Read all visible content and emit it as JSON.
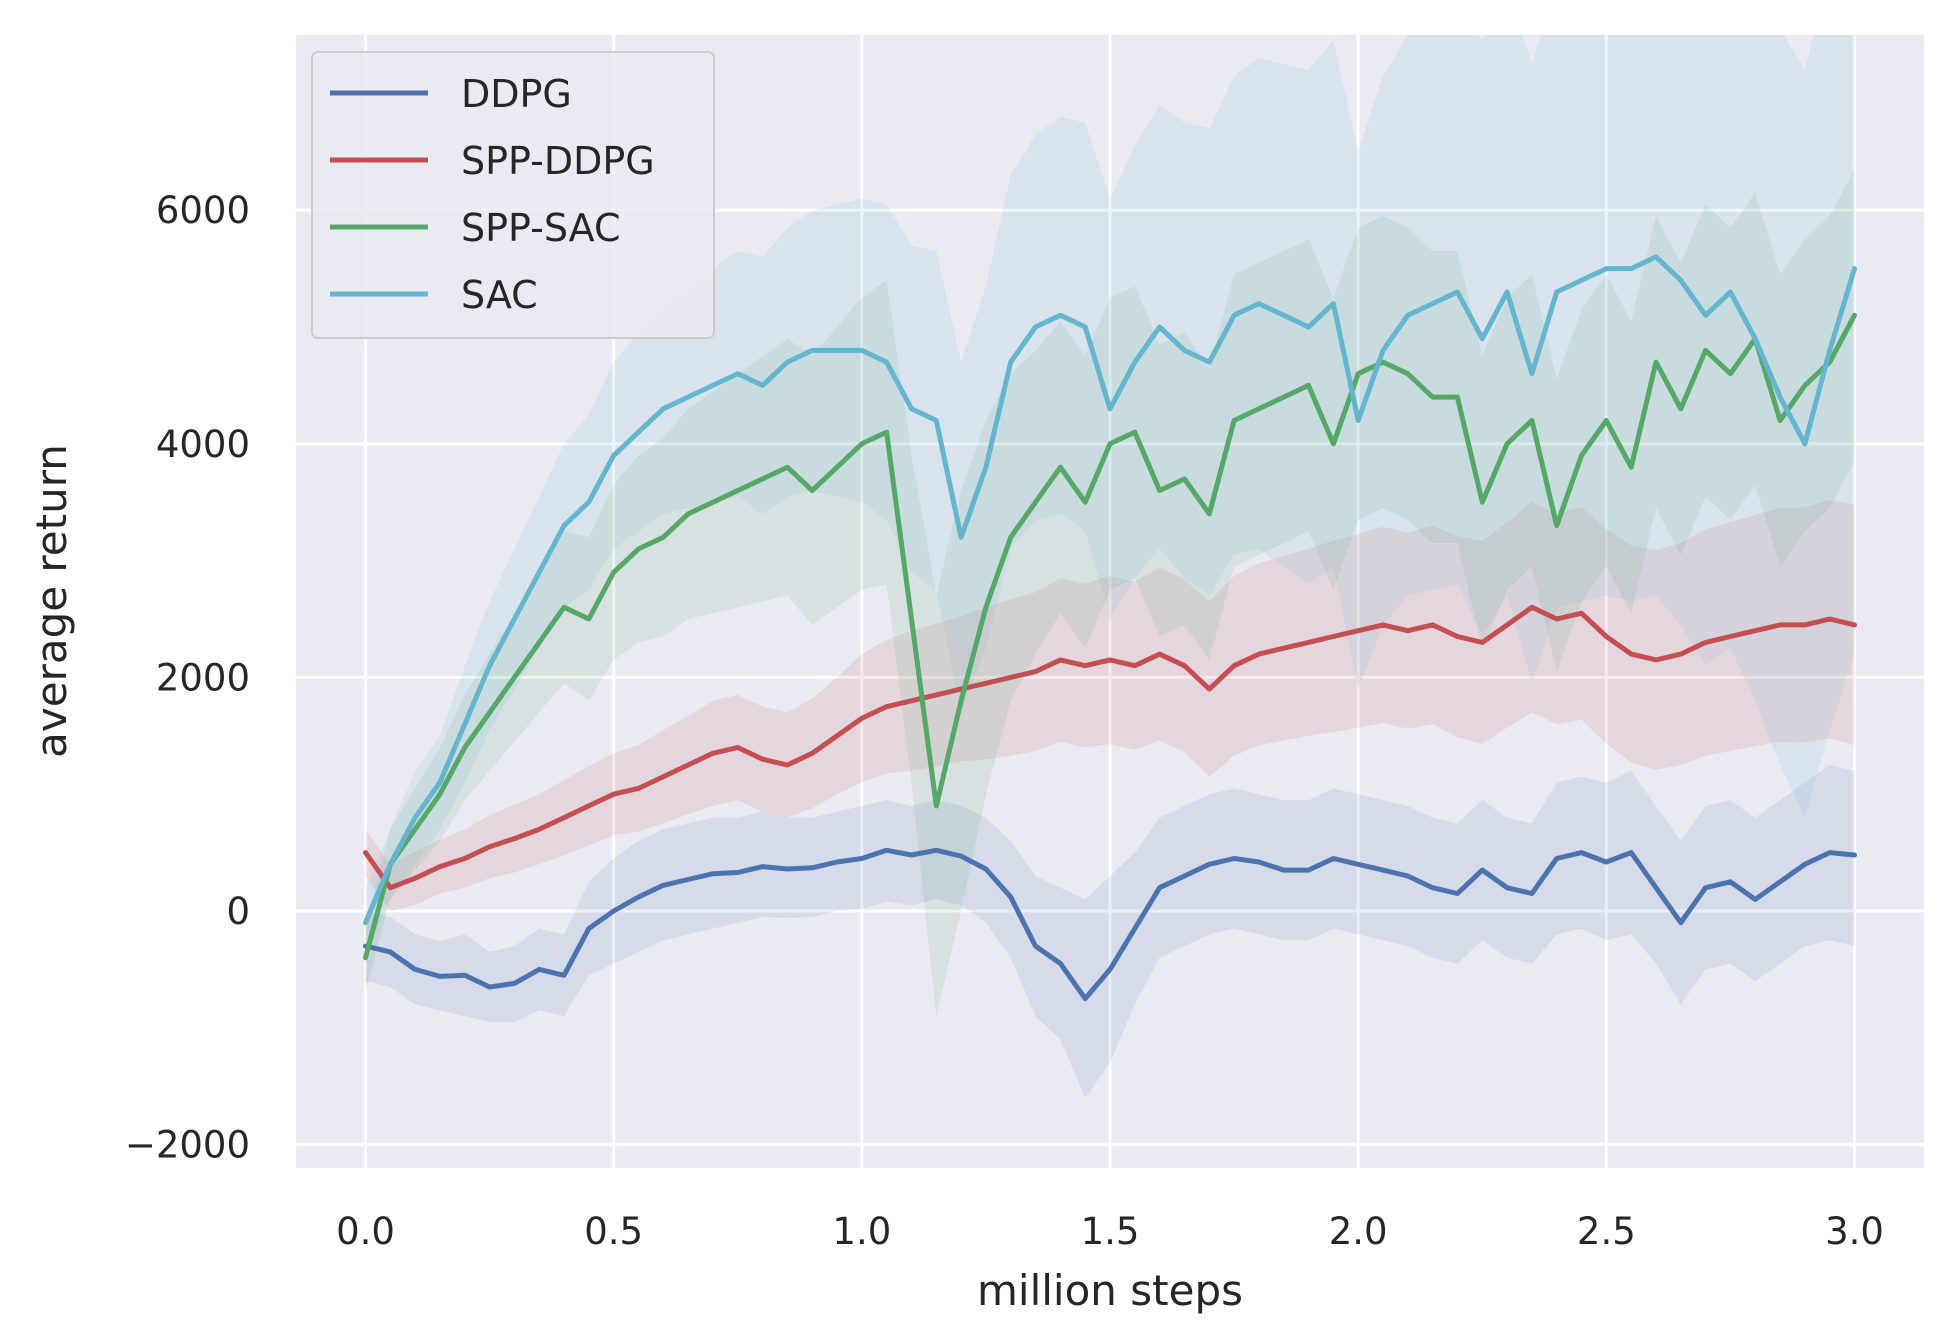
{
  "chart_data": {
    "type": "line",
    "title": "",
    "xlabel": "million steps",
    "ylabel": "average return",
    "xlim": [
      -0.14,
      3.14
    ],
    "ylim": [
      -2200,
      7500
    ],
    "xticks": [
      0.0,
      0.5,
      1.0,
      1.5,
      2.0,
      2.5,
      3.0
    ],
    "xtick_labels": [
      "0.0",
      "0.5",
      "1.0",
      "1.5",
      "2.0",
      "2.5",
      "3.0"
    ],
    "yticks": [
      -2000,
      0,
      2000,
      4000,
      6000
    ],
    "ytick_labels": [
      "−2000",
      "0",
      "2000",
      "4000",
      "6000"
    ],
    "grid": true,
    "legend_position": "top-left",
    "background": "#eaeaf2",
    "series": [
      {
        "name": "DDPG",
        "color": "#4c72b0",
        "x": [
          0.0,
          0.05,
          0.1,
          0.15,
          0.2,
          0.25,
          0.3,
          0.35,
          0.4,
          0.45,
          0.5,
          0.55,
          0.6,
          0.65,
          0.7,
          0.75,
          0.8,
          0.85,
          0.9,
          0.95,
          1.0,
          1.05,
          1.1,
          1.15,
          1.2,
          1.25,
          1.3,
          1.35,
          1.4,
          1.45,
          1.5,
          1.55,
          1.6,
          1.65,
          1.7,
          1.75,
          1.8,
          1.85,
          1.9,
          1.95,
          2.0,
          2.05,
          2.1,
          2.15,
          2.2,
          2.25,
          2.3,
          2.35,
          2.4,
          2.45,
          2.5,
          2.55,
          2.6,
          2.65,
          2.7,
          2.75,
          2.8,
          2.85,
          2.9,
          2.95,
          3.0
        ],
        "values": [
          -300,
          -350,
          -500,
          -560,
          -550,
          -650,
          -620,
          -500,
          -550,
          -150,
          0,
          120,
          220,
          270,
          320,
          330,
          380,
          360,
          370,
          420,
          450,
          520,
          480,
          520,
          470,
          360,
          120,
          -300,
          -450,
          -750,
          -500,
          -150,
          200,
          300,
          400,
          450,
          420,
          350,
          350,
          450,
          400,
          350,
          300,
          200,
          150,
          350,
          200,
          150,
          450,
          500,
          420,
          500,
          200,
          -100,
          200,
          250,
          100,
          250,
          400,
          500,
          480
        ],
        "band_lower": [
          -600,
          -650,
          -800,
          -850,
          -900,
          -950,
          -950,
          -850,
          -900,
          -550,
          -450,
          -350,
          -250,
          -200,
          -150,
          -100,
          -50,
          -60,
          -50,
          0,
          20,
          80,
          50,
          100,
          50,
          -100,
          -400,
          -900,
          -1100,
          -1600,
          -1300,
          -800,
          -400,
          -300,
          -200,
          -150,
          -200,
          -250,
          -250,
          -150,
          -200,
          -250,
          -300,
          -400,
          -450,
          -250,
          -400,
          -450,
          -200,
          -150,
          -250,
          -200,
          -450,
          -800,
          -500,
          -450,
          -600,
          -450,
          -300,
          -250,
          -300
        ],
        "band_upper": [
          0,
          -50,
          -200,
          -260,
          -200,
          -350,
          -300,
          -150,
          -200,
          250,
          450,
          600,
          700,
          750,
          800,
          800,
          850,
          800,
          800,
          850,
          900,
          950,
          900,
          950,
          900,
          800,
          600,
          300,
          200,
          100,
          300,
          500,
          800,
          900,
          1000,
          1050,
          1000,
          950,
          950,
          1050,
          1000,
          950,
          900,
          800,
          750,
          950,
          800,
          750,
          1100,
          1150,
          1100,
          1200,
          900,
          600,
          900,
          950,
          800,
          950,
          1100,
          1250,
          1200
        ]
      },
      {
        "name": "SPP-DDPG",
        "color": "#c44e52",
        "x": [
          0.0,
          0.05,
          0.1,
          0.15,
          0.2,
          0.25,
          0.3,
          0.35,
          0.4,
          0.45,
          0.5,
          0.55,
          0.6,
          0.65,
          0.7,
          0.75,
          0.8,
          0.85,
          0.9,
          0.95,
          1.0,
          1.05,
          1.1,
          1.15,
          1.2,
          1.25,
          1.3,
          1.35,
          1.4,
          1.45,
          1.5,
          1.55,
          1.6,
          1.65,
          1.7,
          1.75,
          1.8,
          1.85,
          1.9,
          1.95,
          2.0,
          2.05,
          2.1,
          2.15,
          2.2,
          2.25,
          2.3,
          2.35,
          2.4,
          2.45,
          2.5,
          2.55,
          2.6,
          2.65,
          2.7,
          2.75,
          2.8,
          2.85,
          2.9,
          2.95,
          3.0
        ],
        "values": [
          500,
          200,
          280,
          380,
          450,
          550,
          620,
          700,
          800,
          900,
          1000,
          1050,
          1150,
          1250,
          1350,
          1400,
          1300,
          1250,
          1350,
          1500,
          1650,
          1750,
          1800,
          1850,
          1900,
          1950,
          2000,
          2050,
          2150,
          2100,
          2150,
          2100,
          2200,
          2100,
          1900,
          2100,
          2200,
          2250,
          2300,
          2350,
          2400,
          2450,
          2400,
          2450,
          2350,
          2300,
          2450,
          2600,
          2500,
          2550,
          2350,
          2200,
          2150,
          2200,
          2300,
          2350,
          2400,
          2450,
          2450,
          2500,
          2450
        ],
        "band_lower": [
          300,
          0,
          50,
          150,
          200,
          280,
          330,
          400,
          480,
          560,
          650,
          680,
          750,
          830,
          900,
          950,
          850,
          800,
          880,
          1000,
          1100,
          1180,
          1200,
          1240,
          1280,
          1300,
          1330,
          1370,
          1450,
          1400,
          1430,
          1380,
          1460,
          1360,
          1150,
          1330,
          1420,
          1460,
          1500,
          1530,
          1570,
          1610,
          1560,
          1600,
          1490,
          1430,
          1570,
          1700,
          1600,
          1640,
          1430,
          1270,
          1210,
          1250,
          1330,
          1370,
          1410,
          1450,
          1440,
          1480,
          1420
        ],
        "band_upper": [
          700,
          400,
          510,
          610,
          700,
          820,
          910,
          1000,
          1120,
          1240,
          1350,
          1420,
          1550,
          1670,
          1800,
          1850,
          1750,
          1700,
          1820,
          2000,
          2200,
          2320,
          2400,
          2460,
          2520,
          2600,
          2670,
          2730,
          2850,
          2800,
          2870,
          2820,
          2940,
          2840,
          2650,
          2870,
          2980,
          3040,
          3100,
          3170,
          3230,
          3290,
          3240,
          3300,
          3210,
          3170,
          3330,
          3500,
          3400,
          3460,
          3270,
          3130,
          3090,
          3150,
          3270,
          3330,
          3390,
          3450,
          3460,
          3520,
          3480
        ]
      },
      {
        "name": "SPP-SAC",
        "color": "#55a868",
        "x": [
          0.0,
          0.05,
          0.1,
          0.15,
          0.2,
          0.25,
          0.3,
          0.35,
          0.4,
          0.45,
          0.5,
          0.55,
          0.6,
          0.65,
          0.7,
          0.75,
          0.8,
          0.85,
          0.9,
          0.95,
          1.0,
          1.05,
          1.1,
          1.15,
          1.2,
          1.25,
          1.3,
          1.35,
          1.4,
          1.45,
          1.5,
          1.55,
          1.6,
          1.65,
          1.7,
          1.75,
          1.8,
          1.85,
          1.9,
          1.95,
          2.0,
          2.05,
          2.1,
          2.15,
          2.2,
          2.25,
          2.3,
          2.35,
          2.4,
          2.45,
          2.5,
          2.55,
          2.6,
          2.65,
          2.7,
          2.75,
          2.8,
          2.85,
          2.9,
          2.95,
          3.0
        ],
        "values": [
          -400,
          400,
          700,
          1000,
          1400,
          1700,
          2000,
          2300,
          2600,
          2500,
          2900,
          3100,
          3200,
          3400,
          3500,
          3600,
          3700,
          3800,
          3600,
          3800,
          4000,
          4100,
          2500,
          900,
          1800,
          2600,
          3200,
          3500,
          3800,
          3500,
          4000,
          4100,
          3600,
          3700,
          3400,
          4200,
          4300,
          4400,
          4500,
          4000,
          4600,
          4700,
          4600,
          4400,
          4400,
          3500,
          4000,
          4200,
          3300,
          3900,
          4200,
          3800,
          4700,
          4300,
          4800,
          4600,
          4900,
          4200,
          4500,
          4700,
          5100
        ],
        "band_lower": [
          -700,
          100,
          350,
          600,
          950,
          1200,
          1450,
          1700,
          1950,
          1800,
          2150,
          2300,
          2350,
          2500,
          2550,
          2600,
          2650,
          2700,
          2450,
          2600,
          2750,
          2800,
          1100,
          -900,
          0,
          1000,
          1800,
          2200,
          2550,
          2250,
          2750,
          2850,
          2350,
          2450,
          2150,
          2950,
          3050,
          3150,
          3250,
          2750,
          3350,
          3450,
          3350,
          3150,
          3150,
          2250,
          2750,
          2950,
          2050,
          2650,
          2950,
          2550,
          3450,
          3050,
          3550,
          3350,
          3650,
          2950,
          3250,
          3450,
          3850
        ],
        "band_upper": [
          -100,
          700,
          1050,
          1400,
          1850,
          2200,
          2550,
          2900,
          3250,
          3200,
          3650,
          3900,
          4050,
          4300,
          4450,
          4600,
          4750,
          4900,
          4750,
          5000,
          5250,
          5400,
          3900,
          2700,
          3600,
          4200,
          4600,
          4800,
          5050,
          4750,
          5250,
          5350,
          4850,
          4950,
          4650,
          5450,
          5550,
          5650,
          5750,
          5250,
          5850,
          5950,
          5850,
          5650,
          5650,
          4750,
          5250,
          5450,
          4550,
          5150,
          5450,
          5050,
          5950,
          5550,
          6050,
          5850,
          6150,
          5450,
          5750,
          5950,
          6350
        ]
      },
      {
        "name": "SAC",
        "color": "#64b5cd",
        "x": [
          0.0,
          0.05,
          0.1,
          0.15,
          0.2,
          0.25,
          0.3,
          0.35,
          0.4,
          0.45,
          0.5,
          0.55,
          0.6,
          0.65,
          0.7,
          0.75,
          0.8,
          0.85,
          0.9,
          0.95,
          1.0,
          1.05,
          1.1,
          1.15,
          1.2,
          1.25,
          1.3,
          1.35,
          1.4,
          1.45,
          1.5,
          1.55,
          1.6,
          1.65,
          1.7,
          1.75,
          1.8,
          1.85,
          1.9,
          1.95,
          2.0,
          2.05,
          2.1,
          2.15,
          2.2,
          2.25,
          2.3,
          2.35,
          2.4,
          2.45,
          2.5,
          2.55,
          2.6,
          2.65,
          2.7,
          2.75,
          2.8,
          2.85,
          2.9,
          2.95,
          3.0
        ],
        "values": [
          -100,
          400,
          800,
          1100,
          1600,
          2100,
          2500,
          2900,
          3300,
          3500,
          3900,
          4100,
          4300,
          4400,
          4500,
          4600,
          4500,
          4700,
          4800,
          4800,
          4800,
          4700,
          4300,
          4200,
          3200,
          3800,
          4700,
          5000,
          5100,
          5000,
          4300,
          4700,
          5000,
          4800,
          4700,
          5100,
          5200,
          5100,
          5000,
          5200,
          4200,
          4800,
          5100,
          5200,
          5300,
          4900,
          5300,
          4600,
          5300,
          5400,
          5500,
          5500,
          5600,
          5400,
          5100,
          5300,
          4900,
          4400,
          4000,
          4800,
          5500
        ],
        "band_lower": [
          -400,
          100,
          400,
          700,
          1100,
          1550,
          1900,
          2250,
          2600,
          2750,
          3100,
          3250,
          3400,
          3450,
          3500,
          3550,
          3400,
          3550,
          3600,
          3550,
          3500,
          3350,
          2900,
          2750,
          1700,
          2250,
          3100,
          3350,
          3400,
          3250,
          2500,
          2850,
          3100,
          2850,
          2700,
          3050,
          3100,
          2950,
          2800,
          2950,
          1900,
          2450,
          2700,
          2750,
          2800,
          2350,
          2700,
          1950,
          2600,
          2650,
          2700,
          2650,
          2700,
          2450,
          2100,
          2250,
          1800,
          1250,
          800,
          1550,
          2200
        ],
        "band_upper": [
          200,
          700,
          1200,
          1500,
          2100,
          2650,
          3100,
          3550,
          4000,
          4250,
          4700,
          4950,
          5200,
          5350,
          5500,
          5650,
          5600,
          5850,
          6000,
          6050,
          6100,
          6050,
          5700,
          5650,
          4700,
          5350,
          6300,
          6650,
          6800,
          6750,
          6100,
          6550,
          6900,
          6750,
          6700,
          7150,
          7300,
          7250,
          7200,
          7450,
          6500,
          7150,
          7500,
          7650,
          7800,
          7450,
          7900,
          7250,
          8000,
          8150,
          8300,
          8350,
          8500,
          8350,
          8100,
          8350,
          8000,
          7550,
          7200,
          8050,
          8800
        ]
      }
    ]
  }
}
